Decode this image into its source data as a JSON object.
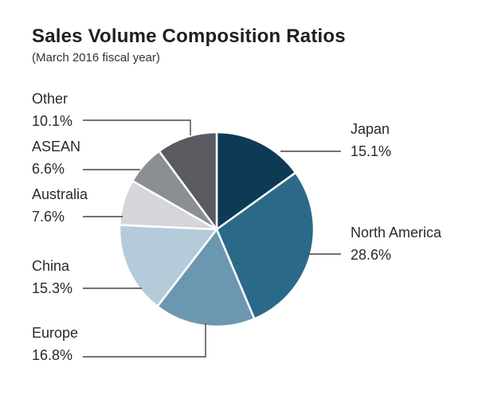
{
  "chart_data": {
    "type": "pie",
    "title": "Sales Volume Composition Ratios",
    "subtitle": "(March 2016 fiscal year)",
    "slices": [
      {
        "label": "Japan",
        "value": 15.1,
        "value_text": "15.1%",
        "color": "#0e3a55"
      },
      {
        "label": "North America",
        "value": 28.6,
        "value_text": "28.6%",
        "color": "#2a6a88"
      },
      {
        "label": "Europe",
        "value": 16.8,
        "value_text": "16.8%",
        "color": "#6c97b0"
      },
      {
        "label": "China",
        "value": 15.3,
        "value_text": "15.3%",
        "color": "#b5cbd9"
      },
      {
        "label": "Australia",
        "value": 7.6,
        "value_text": "7.6%",
        "color": "#d5d6d9"
      },
      {
        "label": "ASEAN",
        "value": 6.6,
        "value_text": "6.6%",
        "color": "#8b8e93"
      },
      {
        "label": "Other",
        "value": 10.1,
        "value_text": "10.1%",
        "color": "#595b60"
      }
    ],
    "start": "12 o'clock",
    "direction": "clockwise",
    "leader_line_color": "#444444"
  }
}
